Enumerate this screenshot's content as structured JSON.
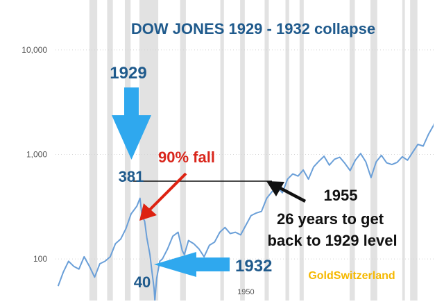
{
  "chart_data": {
    "type": "line",
    "title": "DOW JONES  1929 - 1932 collapse",
    "yscale": "log",
    "ylim": [
      40,
      30000
    ],
    "xlim": [
      1913.5,
      1986
    ],
    "grid": true,
    "ytick_labels": [
      "10,000",
      "1,000",
      "100"
    ],
    "ytick_values": [
      10000,
      1000,
      100
    ],
    "xtick_labels": [
      "1950"
    ],
    "xtick_values": [
      1950
    ],
    "recession_bands": [
      [
        1920,
        1921.5
      ],
      [
        1923.4,
        1924.5
      ],
      [
        1926.8,
        1927.9
      ],
      [
        1929.6,
        1933.2
      ],
      [
        1937.4,
        1938.5
      ],
      [
        1945.1,
        1945.8
      ],
      [
        1948.9,
        1949.8
      ],
      [
        1953.6,
        1954.4
      ],
      [
        1957.6,
        1958.3
      ],
      [
        1960.3,
        1961.1
      ],
      [
        1969.9,
        1970.9
      ],
      [
        1973.9,
        1975.2
      ],
      [
        1980,
        1980.5
      ],
      [
        1981.5,
        1982.9
      ]
    ],
    "series": [
      {
        "color": "#6a9fd8",
        "points": [
          [
            1914,
            55
          ],
          [
            1915,
            75
          ],
          [
            1916,
            95
          ],
          [
            1917,
            85
          ],
          [
            1918,
            80
          ],
          [
            1919,
            105
          ],
          [
            1920,
            85
          ],
          [
            1921,
            67
          ],
          [
            1922,
            90
          ],
          [
            1923,
            95
          ],
          [
            1924,
            105
          ],
          [
            1925,
            140
          ],
          [
            1926,
            155
          ],
          [
            1927,
            195
          ],
          [
            1928,
            270
          ],
          [
            1929.1,
            320
          ],
          [
            1929.7,
            381
          ],
          [
            1930.1,
            255
          ],
          [
            1930.6,
            230
          ],
          [
            1931,
            160
          ],
          [
            1931.6,
            110
          ],
          [
            1932,
            75
          ],
          [
            1932.4,
            52
          ],
          [
            1932.55,
            40
          ],
          [
            1932.9,
            65
          ],
          [
            1933.5,
            95
          ],
          [
            1934,
            100
          ],
          [
            1935,
            125
          ],
          [
            1936,
            165
          ],
          [
            1937,
            180
          ],
          [
            1937.8,
            120
          ],
          [
            1938.2,
            110
          ],
          [
            1939,
            150
          ],
          [
            1940,
            140
          ],
          [
            1941,
            125
          ],
          [
            1942,
            105
          ],
          [
            1943,
            135
          ],
          [
            1944,
            145
          ],
          [
            1945,
            180
          ],
          [
            1946,
            200
          ],
          [
            1947,
            175
          ],
          [
            1948,
            180
          ],
          [
            1949,
            170
          ],
          [
            1950,
            210
          ],
          [
            1951,
            260
          ],
          [
            1952,
            275
          ],
          [
            1953,
            285
          ],
          [
            1954,
            380
          ],
          [
            1955,
            440
          ],
          [
            1956,
            490
          ],
          [
            1957,
            430
          ],
          [
            1958,
            580
          ],
          [
            1959,
            650
          ],
          [
            1960,
            620
          ],
          [
            1961,
            710
          ],
          [
            1962,
            580
          ],
          [
            1963,
            760
          ],
          [
            1964,
            860
          ],
          [
            1965,
            960
          ],
          [
            1966,
            790
          ],
          [
            1967,
            900
          ],
          [
            1968,
            940
          ],
          [
            1969,
            820
          ],
          [
            1970,
            700
          ],
          [
            1971,
            880
          ],
          [
            1972,
            1020
          ],
          [
            1973,
            850
          ],
          [
            1974,
            600
          ],
          [
            1975,
            850
          ],
          [
            1976,
            980
          ],
          [
            1977,
            830
          ],
          [
            1978,
            800
          ],
          [
            1979,
            840
          ],
          [
            1980,
            950
          ],
          [
            1981,
            880
          ],
          [
            1982,
            1050
          ],
          [
            1983,
            1250
          ],
          [
            1984,
            1200
          ],
          [
            1985,
            1550
          ],
          [
            1986,
            1900
          ],
          [
            1986.9,
            2650
          ],
          [
            1987.3,
            1850
          ],
          [
            1987.6,
            2050
          ]
        ]
      }
    ],
    "annotations": {
      "label_1929": "1929",
      "value_1929": "381",
      "fall": "90% fall",
      "label_1932": "1932",
      "value_1932": "40",
      "label_1955": "1955",
      "recovery_line1": "26 years to get",
      "recovery_line2": "back to 1929 level",
      "source": "GoldSwitzerland"
    },
    "colors": {
      "title": "#1f5a8c",
      "line": "#6a9fd8",
      "blue_arrow": "#2fa8ee",
      "red_arrow": "#dd2211",
      "fall_text": "#d9261c",
      "source_text": "#f5b800",
      "band": "#e2e2e2"
    }
  }
}
